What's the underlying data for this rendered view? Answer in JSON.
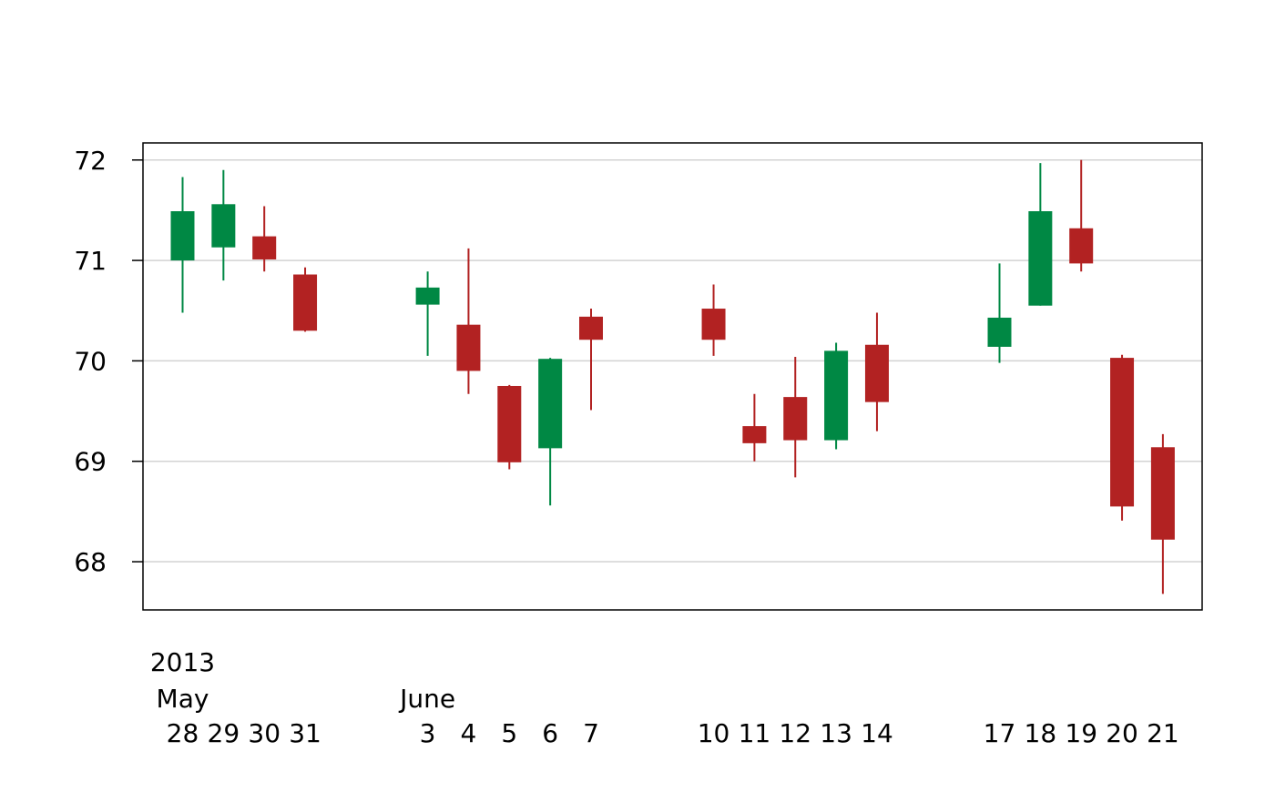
{
  "chart_data": {
    "type": "candlestick",
    "title": "",
    "xlabel": "",
    "ylabel": "",
    "ylim": [
      67.52,
      72.17
    ],
    "yticks": [
      68,
      69,
      70,
      71,
      72
    ],
    "grid": true,
    "legend": "none",
    "colors": {
      "up": "#008844",
      "down": "#b22222",
      "grid": "#d3d3d3",
      "axis": "#000000"
    },
    "period_labels": [
      {
        "text": "2013",
        "at_day": "28"
      },
      {
        "text": "May",
        "at_day": "28"
      },
      {
        "text": "June",
        "at_day": "3"
      }
    ],
    "days": [
      {
        "date": "2013-05-28",
        "label": "28",
        "open": 71.0,
        "high": 71.83,
        "low": 70.48,
        "close": 71.49
      },
      {
        "date": "2013-05-29",
        "label": "29",
        "open": 71.13,
        "high": 71.9,
        "low": 70.8,
        "close": 71.56
      },
      {
        "date": "2013-05-30",
        "label": "30",
        "open": 71.24,
        "high": 71.54,
        "low": 70.89,
        "close": 71.01
      },
      {
        "date": "2013-05-31",
        "label": "31",
        "open": 70.86,
        "high": 70.93,
        "low": 70.29,
        "close": 70.3
      },
      {
        "date": "2013-06-03",
        "label": "3",
        "open": 70.56,
        "high": 70.89,
        "low": 70.05,
        "close": 70.73
      },
      {
        "date": "2013-06-04",
        "label": "4",
        "open": 70.36,
        "high": 71.12,
        "low": 69.67,
        "close": 69.9
      },
      {
        "date": "2013-06-05",
        "label": "5",
        "open": 69.75,
        "high": 69.76,
        "low": 68.92,
        "close": 68.99
      },
      {
        "date": "2013-06-06",
        "label": "6",
        "open": 69.13,
        "high": 70.03,
        "low": 68.56,
        "close": 70.02
      },
      {
        "date": "2013-06-07",
        "label": "7",
        "open": 70.44,
        "high": 70.52,
        "low": 69.51,
        "close": 70.21
      },
      {
        "date": "2013-06-10",
        "label": "10",
        "open": 70.52,
        "high": 70.76,
        "low": 70.05,
        "close": 70.21
      },
      {
        "date": "2013-06-11",
        "label": "11",
        "open": 69.35,
        "high": 69.67,
        "low": 69.0,
        "close": 69.18
      },
      {
        "date": "2013-06-12",
        "label": "12",
        "open": 69.64,
        "high": 70.04,
        "low": 68.84,
        "close": 69.21
      },
      {
        "date": "2013-06-13",
        "label": "13",
        "open": 69.21,
        "high": 70.18,
        "low": 69.12,
        "close": 70.1
      },
      {
        "date": "2013-06-14",
        "label": "14",
        "open": 70.16,
        "high": 70.48,
        "low": 69.3,
        "close": 69.59
      },
      {
        "date": "2013-06-17",
        "label": "17",
        "open": 70.14,
        "high": 70.97,
        "low": 69.98,
        "close": 70.43
      },
      {
        "date": "2013-06-18",
        "label": "18",
        "open": 70.55,
        "high": 71.97,
        "low": 70.55,
        "close": 71.49
      },
      {
        "date": "2013-06-19",
        "label": "19",
        "open": 71.32,
        "high": 72.0,
        "low": 70.89,
        "close": 70.97
      },
      {
        "date": "2013-06-20",
        "label": "20",
        "open": 70.03,
        "high": 70.06,
        "low": 68.41,
        "close": 68.55
      },
      {
        "date": "2013-06-21",
        "label": "21",
        "open": 69.14,
        "high": 69.27,
        "low": 67.68,
        "close": 68.22
      }
    ]
  }
}
